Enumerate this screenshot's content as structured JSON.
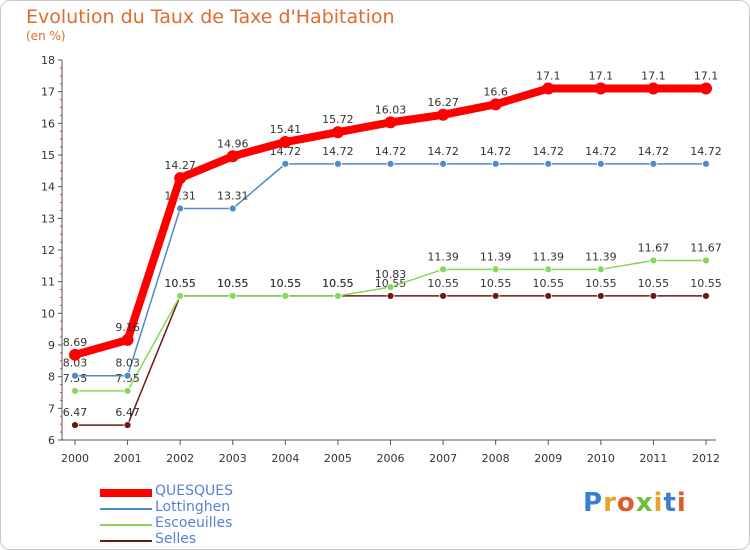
{
  "header": {
    "title": "Evolution du Taux de Taxe d'Habitation",
    "subtitle": "(en %)"
  },
  "logo": {
    "text": "Proxiti"
  },
  "chart_data": {
    "type": "line",
    "title": "Evolution du Taux de Taxe d'Habitation",
    "ylabel": "(en %)",
    "xlabel": "",
    "ylim": [
      6,
      18
    ],
    "yticks": [
      "6",
      "7",
      "8",
      "9",
      "10",
      "11",
      "12",
      "13",
      "14",
      "15",
      "16",
      "17",
      "18"
    ],
    "categories": [
      "2000",
      "2001",
      "2002",
      "2003",
      "2004",
      "2005",
      "2006",
      "2007",
      "2008",
      "2009",
      "2010",
      "2011",
      "2012"
    ],
    "series": [
      {
        "name": "QUESQUES",
        "color": "#ff0000",
        "values": [
          8.69,
          9.16,
          14.27,
          14.96,
          15.41,
          15.72,
          16.03,
          16.27,
          16.6,
          17.1,
          17.1,
          17.1,
          17.1
        ],
        "labels": [
          "8.69",
          "9.16",
          "14.27",
          "14.96",
          "15.41",
          "15.72",
          "16.03",
          "16.27",
          "16.6",
          "17.1",
          "17.1",
          "17.1",
          "17.1"
        ]
      },
      {
        "name": "Lottinghen",
        "color": "#4f8ac9",
        "values": [
          8.03,
          8.03,
          13.31,
          13.31,
          14.72,
          14.72,
          14.72,
          14.72,
          14.72,
          14.72,
          14.72,
          14.72,
          14.72
        ],
        "labels": [
          "8.03",
          "8.03",
          "13.31",
          "13.31",
          "14.72",
          "14.72",
          "14.72",
          "14.72",
          "14.72",
          "14.72",
          "14.72",
          "14.72",
          "14.72"
        ]
      },
      {
        "name": "Escoeuilles",
        "color": "#88d65a",
        "values": [
          7.55,
          7.55,
          10.55,
          10.55,
          10.55,
          10.55,
          10.83,
          11.39,
          11.39,
          11.39,
          11.39,
          11.67,
          11.67
        ],
        "labels": [
          "7.55",
          "7.55",
          "10.55",
          "10.55",
          "10.55",
          "10.55",
          "10.83",
          "11.39",
          "11.39",
          "11.39",
          "11.39",
          "11.67",
          "11.67"
        ]
      },
      {
        "name": "Selles",
        "color": "#6b1a1a",
        "values": [
          6.47,
          6.47,
          10.55,
          10.55,
          10.55,
          10.55,
          10.55,
          10.55,
          10.55,
          10.55,
          10.55,
          10.55,
          10.55
        ],
        "labels": [
          "6.47",
          "6.47",
          "10.55",
          "10.55",
          "10.55",
          "10.55",
          "10.55",
          "10.55",
          "10.55",
          "10.55",
          "10.55",
          "10.55",
          "10.55"
        ]
      }
    ],
    "grid": false,
    "legend_position": "bottom-left"
  }
}
